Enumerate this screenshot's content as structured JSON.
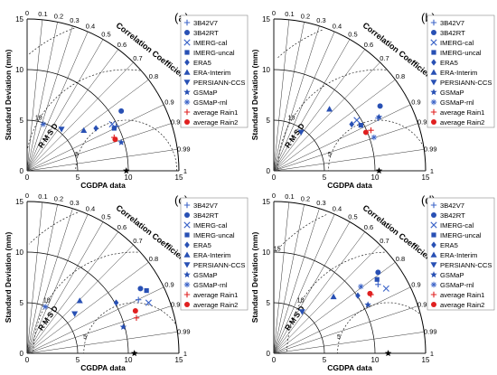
{
  "figure": {
    "ylabel": "Standard Deviation (mm)",
    "xlabel": "CGDPA data",
    "corr_label": "Correlation Coefficient",
    "rmsd_label": "RMSD",
    "sd_ticks": [
      "0",
      "5",
      "10",
      "15"
    ],
    "corr_ticks": [
      "0",
      "0.1",
      "0.2",
      "0.3",
      "0.4",
      "0.5",
      "0.6",
      "0.7",
      "0.8",
      "0.9",
      "0.95",
      "0.99",
      "1"
    ],
    "rmsd_ticks": [
      "5",
      "10",
      "15"
    ]
  },
  "legend": [
    {
      "name": "3B42V7",
      "marker": "plus",
      "color": "#3c64c8"
    },
    {
      "name": "3B42RT",
      "marker": "circle",
      "color": "#2850b4"
    },
    {
      "name": "IMERG-cal",
      "marker": "x",
      "color": "#3c64c8"
    },
    {
      "name": "IMERG-uncal",
      "marker": "square",
      "color": "#2850b4"
    },
    {
      "name": "ERA5",
      "marker": "diamond",
      "color": "#2850b4"
    },
    {
      "name": "ERA-Interim",
      "marker": "triangle-up",
      "color": "#2850b4"
    },
    {
      "name": "PERSIANN-CCS",
      "marker": "triangle-down",
      "color": "#2850b4"
    },
    {
      "name": "GSMaP",
      "marker": "star",
      "color": "#2850b4"
    },
    {
      "name": "GSMaP-rnl",
      "marker": "asterisk",
      "color": "#3c64c8"
    },
    {
      "name": "average Rain1",
      "marker": "plus",
      "color": "#e02020"
    },
    {
      "name": "average Rain2",
      "marker": "circle",
      "color": "#e02020"
    }
  ],
  "chart_data": [
    {
      "panel": "(a)",
      "type": "scatter",
      "reference_sd": 9.8,
      "xlim": [
        0,
        15
      ],
      "ylim": [
        0,
        15
      ],
      "series": [
        {
          "name": "3B42V7",
          "x": 8.8,
          "y": 4.4
        },
        {
          "name": "3B42RT",
          "x": 9.3,
          "y": 5.9
        },
        {
          "name": "IMERG-cal",
          "x": 8.4,
          "y": 4.6
        },
        {
          "name": "IMERG-uncal",
          "x": 8.6,
          "y": 4.2
        },
        {
          "name": "ERA5",
          "x": 6.8,
          "y": 4.2
        },
        {
          "name": "ERA-Interim",
          "x": 5.6,
          "y": 4.0
        },
        {
          "name": "PERSIANN-CCS",
          "x": 3.4,
          "y": 4.1
        },
        {
          "name": "GSMaP",
          "x": 9.3,
          "y": 2.8
        },
        {
          "name": "GSMaP-rnl",
          "x": 1.6,
          "y": 4.6
        },
        {
          "name": "average Rain1",
          "x": 8.6,
          "y": 3.3
        },
        {
          "name": "average Rain2",
          "x": 8.7,
          "y": 3.1
        }
      ]
    },
    {
      "panel": "(b)",
      "type": "scatter",
      "reference_sd": 10.4,
      "xlim": [
        0,
        15
      ],
      "ylim": [
        0,
        15
      ],
      "series": [
        {
          "name": "3B42V7",
          "x": 10.3,
          "y": 5.2
        },
        {
          "name": "3B42RT",
          "x": 10.5,
          "y": 6.4
        },
        {
          "name": "IMERG-cal",
          "x": 8.2,
          "y": 5.0
        },
        {
          "name": "IMERG-uncal",
          "x": 8.6,
          "y": 4.5
        },
        {
          "name": "ERA5",
          "x": 7.7,
          "y": 4.6
        },
        {
          "name": "ERA-Interim",
          "x": 5.5,
          "y": 6.1
        },
        {
          "name": "PERSIANN-CCS",
          "x": 2.7,
          "y": 3.8
        },
        {
          "name": "GSMaP",
          "x": 10.4,
          "y": 5.3
        },
        {
          "name": "GSMaP-rnl",
          "x": 9.9,
          "y": 3.3
        },
        {
          "name": "average Rain1",
          "x": 9.6,
          "y": 4.0
        },
        {
          "name": "average Rain2",
          "x": 9.1,
          "y": 3.8
        }
      ]
    },
    {
      "panel": "(c)",
      "type": "scatter",
      "reference_sd": 10.6,
      "xlim": [
        0,
        15
      ],
      "ylim": [
        0,
        15
      ],
      "series": [
        {
          "name": "3B42V7",
          "x": 11.0,
          "y": 5.3
        },
        {
          "name": "3B42RT",
          "x": 11.2,
          "y": 6.4
        },
        {
          "name": "IMERG-cal",
          "x": 12.0,
          "y": 5.0
        },
        {
          "name": "IMERG-uncal",
          "x": 11.8,
          "y": 6.2
        },
        {
          "name": "ERA5",
          "x": 8.8,
          "y": 5.0
        },
        {
          "name": "ERA-Interim",
          "x": 5.2,
          "y": 5.2
        },
        {
          "name": "PERSIANN-CCS",
          "x": 4.7,
          "y": 3.9
        },
        {
          "name": "GSMaP",
          "x": 9.5,
          "y": 2.6
        },
        {
          "name": "GSMaP-rnl",
          "x": 1.8,
          "y": 4.6
        },
        {
          "name": "average Rain1",
          "x": 10.8,
          "y": 3.5
        },
        {
          "name": "average Rain2",
          "x": 10.7,
          "y": 4.2
        }
      ]
    },
    {
      "panel": "(d)",
      "type": "scatter",
      "reference_sd": 11.3,
      "xlim": [
        0,
        15
      ],
      "ylim": [
        0,
        15
      ],
      "series": [
        {
          "name": "3B42V7",
          "x": 10.3,
          "y": 6.8
        },
        {
          "name": "3B42RT",
          "x": 10.3,
          "y": 8.0
        },
        {
          "name": "IMERG-cal",
          "x": 11.1,
          "y": 6.4
        },
        {
          "name": "IMERG-uncal",
          "x": 10.2,
          "y": 7.3
        },
        {
          "name": "ERA5",
          "x": 8.3,
          "y": 5.7
        },
        {
          "name": "ERA-Interim",
          "x": 5.9,
          "y": 5.6
        },
        {
          "name": "PERSIANN-CCS",
          "x": 2.8,
          "y": 4.1
        },
        {
          "name": "GSMaP",
          "x": 9.3,
          "y": 4.8
        },
        {
          "name": "GSMaP-rnl",
          "x": 8.6,
          "y": 6.6
        },
        {
          "name": "average Rain1",
          "x": 9.6,
          "y": 5.8
        },
        {
          "name": "average Rain2",
          "x": 9.5,
          "y": 5.9
        }
      ]
    }
  ]
}
